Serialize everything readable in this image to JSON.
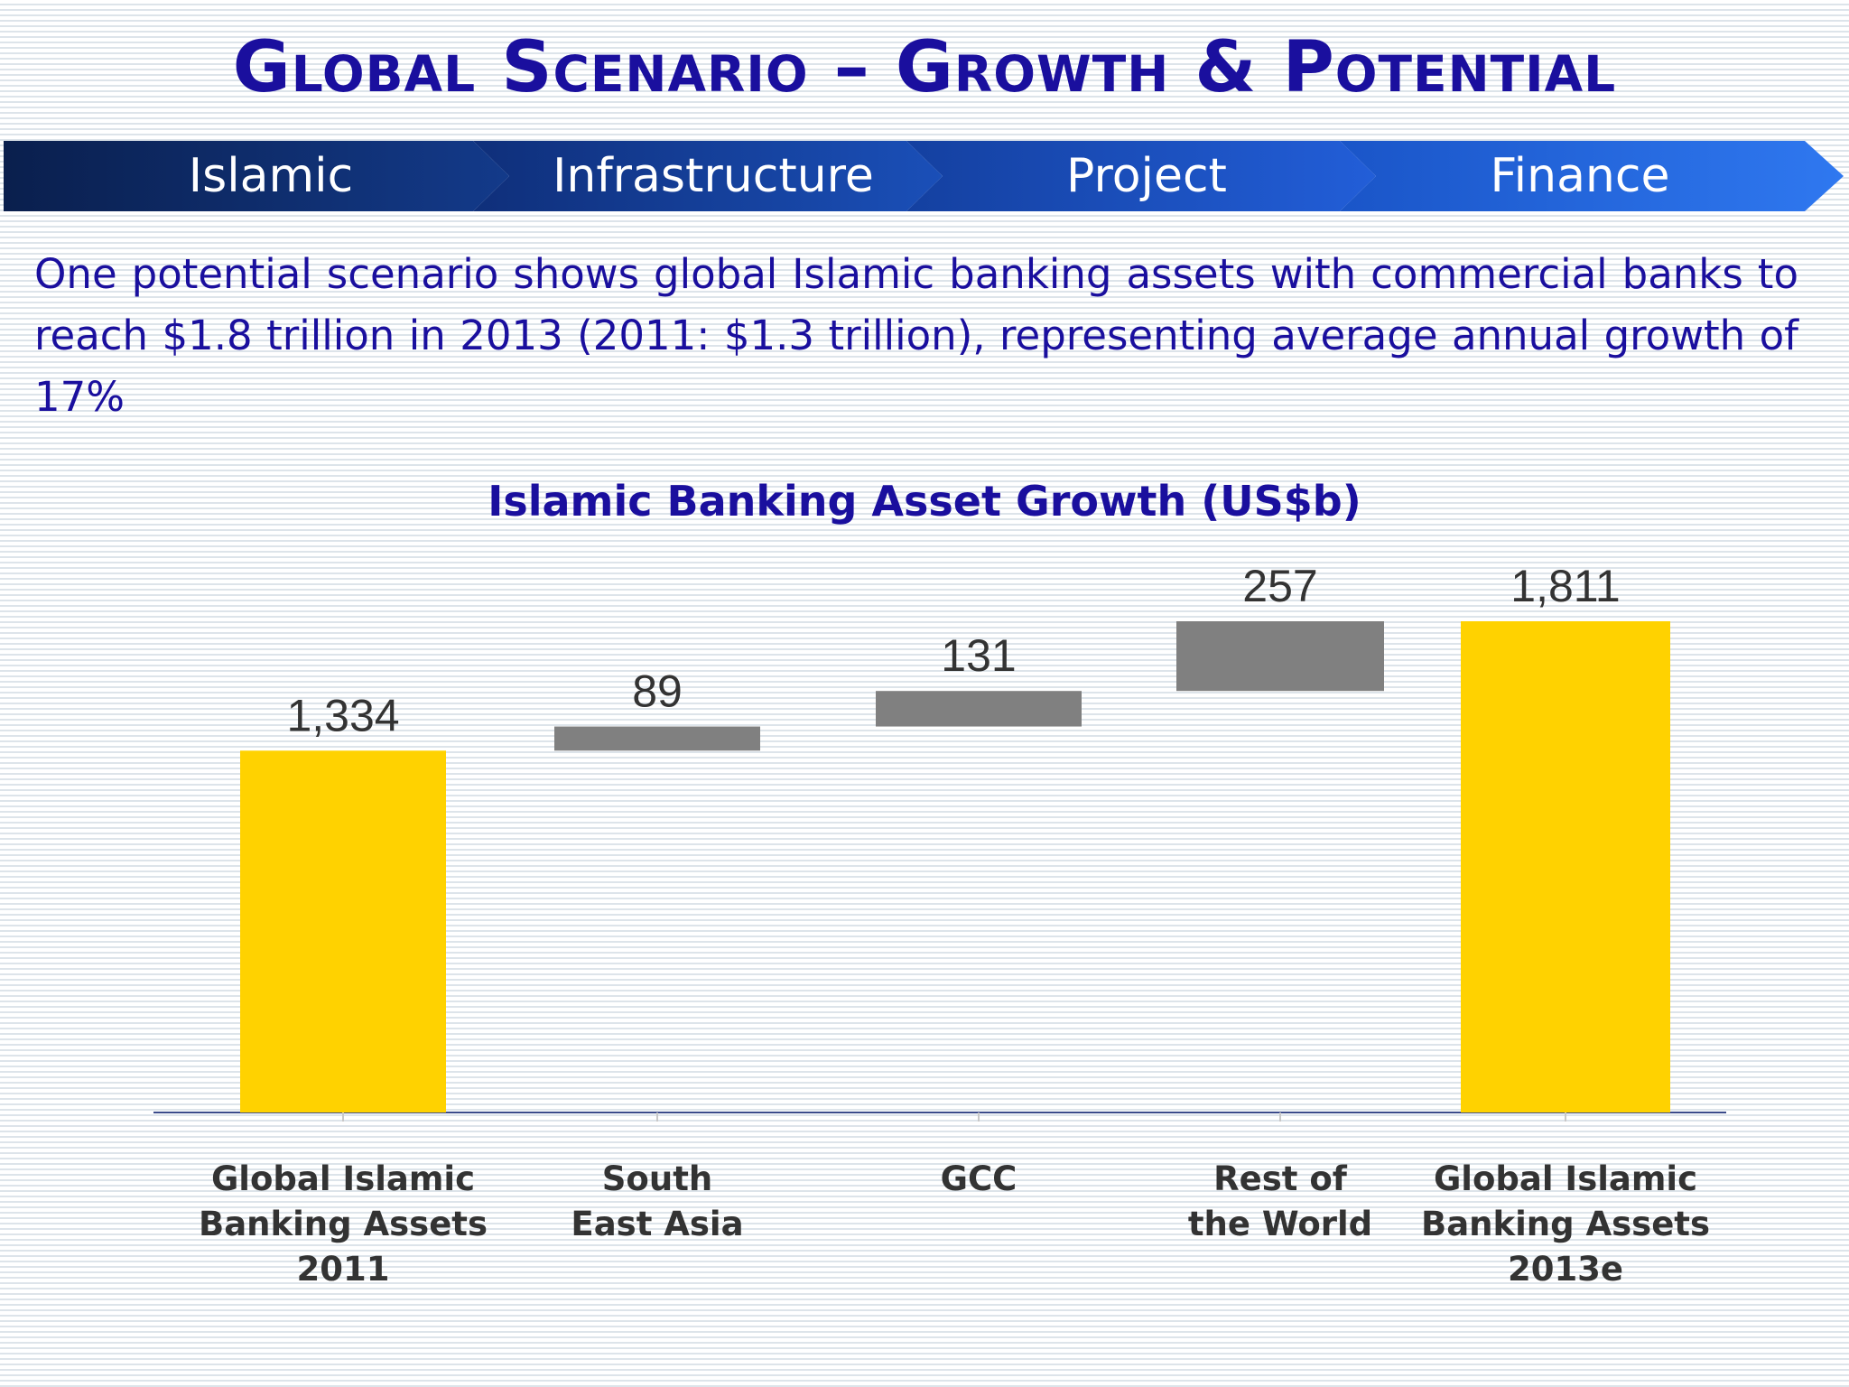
{
  "slide": {
    "title": "Global Scenario – Growth & Potential",
    "banner": [
      "Islamic",
      "Infrastructure",
      "Project",
      "Finance"
    ],
    "description": "One potential scenario shows global Islamic banking assets with commercial banks to reach $1.8 trillion in 2013 (2011: $1.3 trillion), representing average annual growth of 17%"
  },
  "colors": {
    "title": "#1a0f9e",
    "total_bar": "#ffd200",
    "delta_bar": "#808080",
    "banner_dark": "#0f2a66",
    "banner_light": "#2a6ee8"
  },
  "chart_data": {
    "type": "bar",
    "subtype": "waterfall",
    "title": "Islamic Banking Asset Growth (US$b)",
    "xlabel": "",
    "ylabel": "",
    "categories": [
      [
        "Global Islamic",
        "Banking Assets",
        "2011"
      ],
      [
        "South",
        "East Asia"
      ],
      [
        "GCC"
      ],
      [
        "Rest of",
        "the World"
      ],
      [
        "Global Islamic",
        "Banking Assets",
        "2013e"
      ]
    ],
    "values": [
      1334,
      89,
      131,
      257,
      1811
    ],
    "labels": [
      "1,334",
      "89",
      "131",
      "257",
      "1,811"
    ],
    "kinds": [
      "total",
      "delta",
      "delta",
      "delta",
      "total"
    ],
    "ylim": [
      0,
      1811
    ],
    "grid": false,
    "legend": "none"
  }
}
